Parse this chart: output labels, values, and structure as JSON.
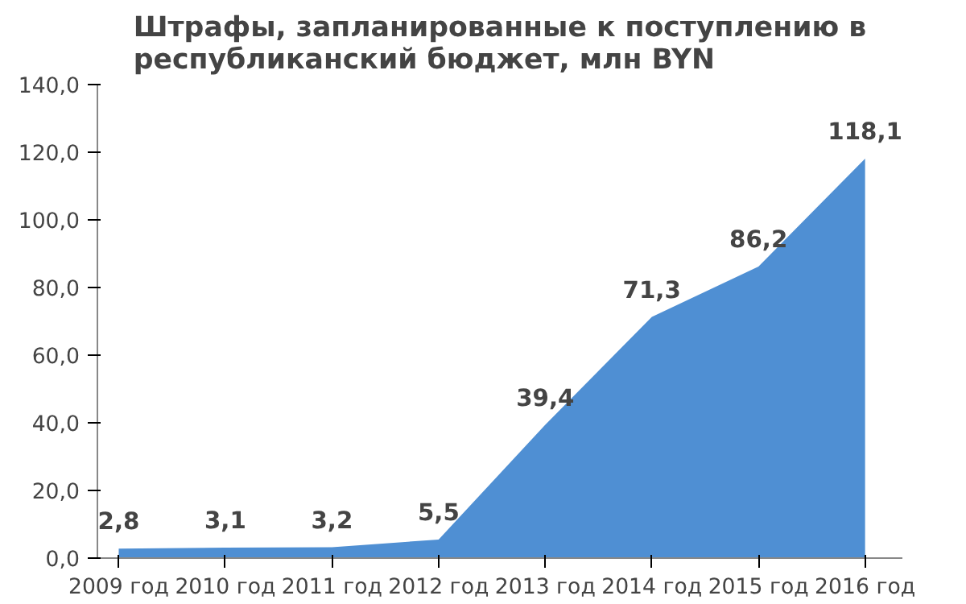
{
  "chart_data": {
    "type": "area",
    "title": "Штрафы, запланированные к поступлению в республиканский бюджет, млн BYN",
    "categories": [
      "2009 год",
      "2010 год",
      "2011 год",
      "2012 год",
      "2013 год",
      "2014 год",
      "2015 год",
      "2016 год"
    ],
    "values": [
      2.8,
      3.1,
      3.2,
      5.5,
      39.4,
      71.3,
      86.2,
      118.1
    ],
    "value_labels": [
      "2,8",
      "3,1",
      "3,2",
      "5,5",
      "39,4",
      "71,3",
      "86,2",
      "118,1"
    ],
    "color": "#4f8fd3",
    "ylim": [
      0,
      140
    ],
    "yticks": [
      {
        "value": 0,
        "label": "0,0"
      },
      {
        "value": 20,
        "label": "20,0"
      },
      {
        "value": 40,
        "label": "40,0"
      },
      {
        "value": 60,
        "label": "60,0"
      },
      {
        "value": 80,
        "label": "80,0"
      },
      {
        "value": 100,
        "label": "100,0"
      },
      {
        "value": 120,
        "label": "120,0"
      },
      {
        "value": 140,
        "label": "140,0"
      }
    ],
    "grid": false
  }
}
